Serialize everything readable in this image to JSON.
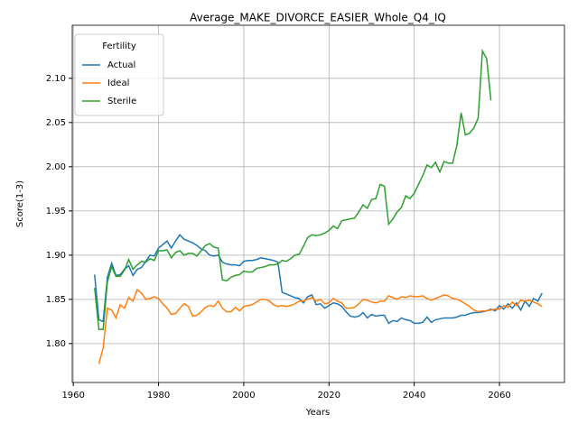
{
  "chart_data": {
    "type": "line",
    "title": "Average_MAKE_DIVORCE_EASIER_Whole_Q4_IQ",
    "x_label": "Years",
    "y_label": "Score(1-3)",
    "legend_title": "Fertility",
    "legend": "upper left",
    "grid": true,
    "xlim": [
      1959.75,
      2075.25
    ],
    "ylim": [
      1.756,
      2.16
    ],
    "xticks": [
      1960,
      1980,
      2000,
      2020,
      2040,
      2060
    ],
    "yticks": [
      {
        "value": 1.8,
        "label": "1.80"
      },
      {
        "value": 1.85,
        "label": "1.85"
      },
      {
        "value": 1.9,
        "label": "1.90"
      },
      {
        "value": 1.95,
        "label": "1.95"
      },
      {
        "value": 2.0,
        "label": "2.00"
      },
      {
        "value": 2.05,
        "label": "2.05"
      },
      {
        "value": 2.1,
        "label": "2.10"
      }
    ],
    "x": [
      1965,
      1966,
      1967,
      1968,
      1969,
      1970,
      1971,
      1972,
      1973,
      1974,
      1975,
      1976,
      1977,
      1978,
      1979,
      1980,
      1981,
      1982,
      1983,
      1984,
      1985,
      1986,
      1987,
      1988,
      1989,
      1990,
      1991,
      1992,
      1993,
      1994,
      1995,
      1996,
      1997,
      1998,
      1999,
      2000,
      2001,
      2002,
      2003,
      2004,
      2005,
      2006,
      2007,
      2008,
      2009,
      2010,
      2011,
      2012,
      2013,
      2014,
      2015,
      2016,
      2017,
      2018,
      2019,
      2020,
      2021,
      2022,
      2023,
      2024,
      2025,
      2026,
      2027,
      2028,
      2029,
      2030,
      2031,
      2032,
      2033,
      2034,
      2035,
      2036,
      2037,
      2038,
      2039,
      2040,
      2041,
      2042,
      2043,
      2044,
      2045,
      2046,
      2047,
      2048,
      2049,
      2050,
      2051,
      2052,
      2053,
      2054,
      2055,
      2056,
      2057,
      2058,
      2059,
      2060,
      2061,
      2062,
      2063,
      2064,
      2065,
      2066,
      2067,
      2068,
      2069,
      2070
    ],
    "series": [
      {
        "name": "Actual",
        "color": "#1f77b4",
        "values": [
          1.878,
          1.827,
          1.825,
          1.875,
          1.891,
          1.877,
          1.878,
          1.884,
          1.888,
          1.877,
          1.884,
          1.886,
          1.893,
          1.9,
          1.899,
          1.908,
          1.912,
          1.916,
          1.908,
          1.916,
          1.923,
          1.918,
          1.916,
          1.914,
          1.911,
          1.907,
          1.905,
          1.9,
          1.899,
          1.9,
          1.892,
          1.89,
          1.889,
          1.889,
          1.888,
          1.893,
          1.894,
          1.894,
          1.895,
          1.897,
          1.896,
          1.895,
          1.894,
          1.892,
          1.858,
          1.856,
          1.854,
          1.852,
          1.851,
          1.846,
          1.853,
          1.855,
          1.844,
          1.845,
          1.84,
          1.843,
          1.846,
          1.845,
          1.842,
          1.836,
          1.831,
          1.83,
          1.831,
          1.835,
          1.829,
          1.833,
          1.831,
          1.832,
          1.832,
          1.823,
          1.826,
          1.825,
          1.829,
          1.827,
          1.826,
          1.823,
          1.823,
          1.824,
          1.83,
          1.824,
          1.827,
          1.828,
          1.829,
          1.829,
          1.829,
          1.83,
          1.832,
          1.832,
          1.834,
          1.835,
          1.835,
          1.836,
          1.837,
          1.839,
          1.837,
          1.843,
          1.839,
          1.845,
          1.84,
          1.846,
          1.838,
          1.848,
          1.842,
          1.851,
          1.848,
          1.857
        ]
      },
      {
        "name": "Ideal",
        "color": "#ff7f0e",
        "values": [
          null,
          1.777,
          1.795,
          1.84,
          1.838,
          1.829,
          1.844,
          1.84,
          1.852,
          1.848,
          1.861,
          1.857,
          1.85,
          1.851,
          1.853,
          1.851,
          1.845,
          1.84,
          1.833,
          1.834,
          1.84,
          1.845,
          1.842,
          1.831,
          1.832,
          1.836,
          1.841,
          1.843,
          1.842,
          1.848,
          1.84,
          1.836,
          1.836,
          1.841,
          1.837,
          1.842,
          1.843,
          1.844,
          1.847,
          1.85,
          1.85,
          1.848,
          1.844,
          1.842,
          1.843,
          1.842,
          1.843,
          1.845,
          1.848,
          1.848,
          1.85,
          1.852,
          1.848,
          1.85,
          1.845,
          1.846,
          1.851,
          1.848,
          1.846,
          1.84,
          1.84,
          1.841,
          1.845,
          1.85,
          1.849,
          1.847,
          1.846,
          1.848,
          1.848,
          1.854,
          1.852,
          1.85,
          1.853,
          1.852,
          1.854,
          1.853,
          1.853,
          1.854,
          1.851,
          1.849,
          1.851,
          1.853,
          1.855,
          1.854,
          1.851,
          1.85,
          1.848,
          1.845,
          1.842,
          1.838,
          1.836,
          1.837,
          1.837,
          1.838,
          1.839,
          1.839,
          1.843,
          1.841,
          1.847,
          1.843,
          1.849,
          1.848,
          1.849,
          1.847,
          1.845,
          1.842
        ]
      },
      {
        "name": "Sterile",
        "color": "#2ca02c",
        "values": [
          1.863,
          1.816,
          1.816,
          1.87,
          1.887,
          1.876,
          1.876,
          1.883,
          1.895,
          1.884,
          1.889,
          1.893,
          1.892,
          1.896,
          1.894,
          1.905,
          1.905,
          1.906,
          1.897,
          1.903,
          1.905,
          1.9,
          1.902,
          1.902,
          1.899,
          1.905,
          1.911,
          1.913,
          1.909,
          1.908,
          1.872,
          1.871,
          1.875,
          1.877,
          1.878,
          1.882,
          1.881,
          1.881,
          1.885,
          1.886,
          1.887,
          1.889,
          1.889,
          1.89,
          1.894,
          1.893,
          1.896,
          1.9,
          1.901,
          1.91,
          1.92,
          1.923,
          1.922,
          1.923,
          1.925,
          1.928,
          1.933,
          1.93,
          1.939,
          1.94,
          1.941,
          1.942,
          1.949,
          1.957,
          1.953,
          1.963,
          1.964,
          1.98,
          1.978,
          1.935,
          1.941,
          1.949,
          1.954,
          1.967,
          1.964,
          1.97,
          1.98,
          1.99,
          2.002,
          1.999,
          2.005,
          1.994,
          2.006,
          2.004,
          2.004,
          2.024,
          2.061,
          2.036,
          2.038,
          2.044,
          2.055,
          2.131,
          2.122,
          2.075,
          null,
          null,
          null,
          null,
          null,
          null,
          null,
          null,
          null,
          null,
          null,
          null
        ]
      }
    ]
  }
}
